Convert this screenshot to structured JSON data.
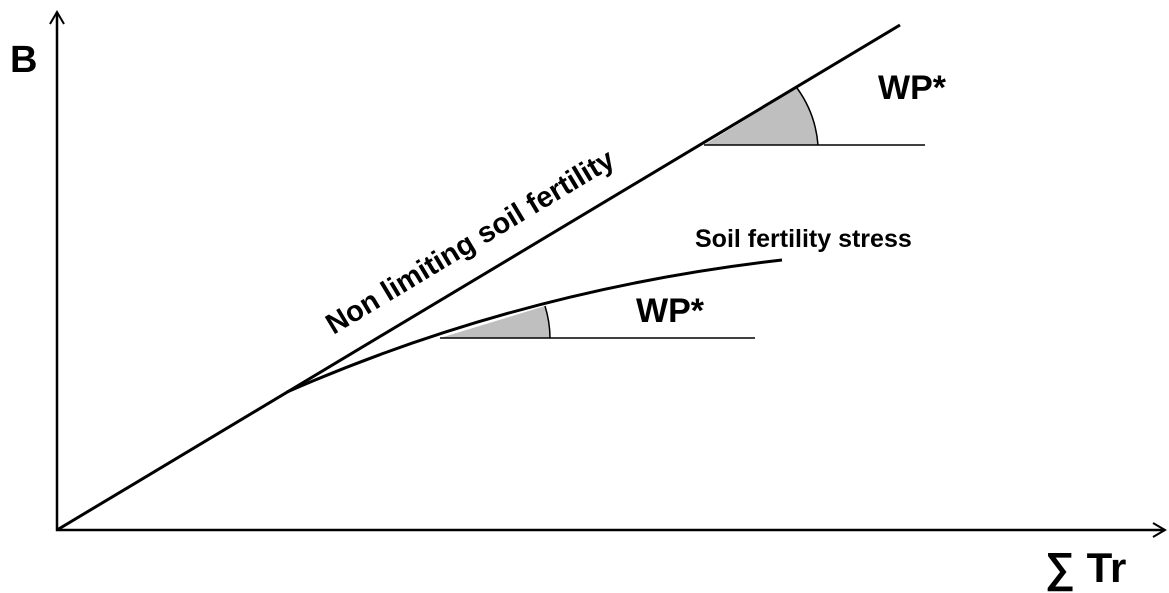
{
  "axes": {
    "y_label": "B",
    "x_label": "∑ Tr"
  },
  "lines": [
    {
      "label": "Non limiting soil fertility",
      "slope_label": "WP*"
    },
    {
      "label": "Soil fertility stress",
      "slope_label": "WP*"
    }
  ]
}
